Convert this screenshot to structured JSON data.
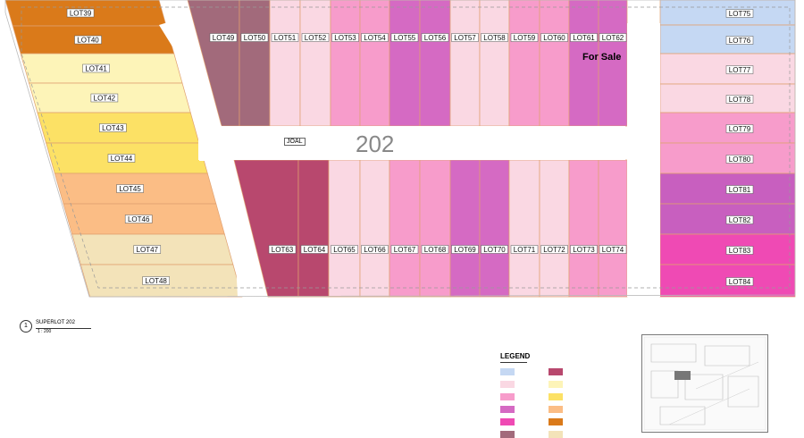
{
  "plan": {
    "superlot_number": "202",
    "road_label": "JOAL",
    "for_sale_label": "For Sale",
    "view_number": "1",
    "view_title": "SUPERLOT 202",
    "view_scale": "1 : 200"
  },
  "lots": [
    {
      "id": "LOT39",
      "color": "#da7a1a"
    },
    {
      "id": "LOT40",
      "color": "#da7a1a"
    },
    {
      "id": "LOT41",
      "color": "#fdf4b8"
    },
    {
      "id": "LOT42",
      "color": "#fdf4b8"
    },
    {
      "id": "LOT43",
      "color": "#fce165"
    },
    {
      "id": "LOT44",
      "color": "#fce165"
    },
    {
      "id": "LOT45",
      "color": "#fbbd85"
    },
    {
      "id": "LOT46",
      "color": "#fbbd85"
    },
    {
      "id": "LOT47",
      "color": "#f3e3b9"
    },
    {
      "id": "LOT48",
      "color": "#f3e3b9"
    },
    {
      "id": "LOT49",
      "color": "#a26a7b"
    },
    {
      "id": "LOT50",
      "color": "#a26a7b"
    },
    {
      "id": "LOT51",
      "color": "#fad8e3"
    },
    {
      "id": "LOT52",
      "color": "#fad8e3"
    },
    {
      "id": "LOT53",
      "color": "#f79ccb"
    },
    {
      "id": "LOT54",
      "color": "#f79ccb"
    },
    {
      "id": "LOT55",
      "color": "#d56ac3"
    },
    {
      "id": "LOT56",
      "color": "#d56ac3"
    },
    {
      "id": "LOT57",
      "color": "#fad8e3"
    },
    {
      "id": "LOT58",
      "color": "#fad8e3"
    },
    {
      "id": "LOT59",
      "color": "#f79ccb"
    },
    {
      "id": "LOT60",
      "color": "#f79ccb"
    },
    {
      "id": "LOT61",
      "color": "#d56ac3"
    },
    {
      "id": "LOT62",
      "color": "#d56ac3"
    },
    {
      "id": "LOT63",
      "color": "#b8486e"
    },
    {
      "id": "LOT64",
      "color": "#b8486e"
    },
    {
      "id": "LOT65",
      "color": "#fad8e3"
    },
    {
      "id": "LOT66",
      "color": "#fad8e3"
    },
    {
      "id": "LOT67",
      "color": "#f79ccb"
    },
    {
      "id": "LOT68",
      "color": "#f79ccb"
    },
    {
      "id": "LOT69",
      "color": "#d56ac3"
    },
    {
      "id": "LOT70",
      "color": "#d56ac3"
    },
    {
      "id": "LOT71",
      "color": "#fad8e3"
    },
    {
      "id": "LOT72",
      "color": "#fad8e3"
    },
    {
      "id": "LOT73",
      "color": "#f79ccb"
    },
    {
      "id": "LOT74",
      "color": "#f79ccb"
    },
    {
      "id": "LOT75",
      "color": "#c5d8f3"
    },
    {
      "id": "LOT76",
      "color": "#c5d8f3"
    },
    {
      "id": "LOT77",
      "color": "#fad8e3"
    },
    {
      "id": "LOT78",
      "color": "#fad8e3"
    },
    {
      "id": "LOT79",
      "color": "#f79ccb"
    },
    {
      "id": "LOT80",
      "color": "#f79ccb"
    },
    {
      "id": "LOT81",
      "color": "#c85fbf"
    },
    {
      "id": "LOT82",
      "color": "#c85fbf"
    },
    {
      "id": "LOT83",
      "color": "#ef4ab4"
    },
    {
      "id": "LOT84",
      "color": "#ef4ab4"
    }
  ],
  "legend": {
    "title": "LEGEND",
    "items": [
      {
        "color": "#c5d8f3"
      },
      {
        "color": "#b8486e"
      },
      {
        "color": "#fad8e3"
      },
      {
        "color": "#fdf4b8"
      },
      {
        "color": "#f79ccb"
      },
      {
        "color": "#fce165"
      },
      {
        "color": "#d56ac3"
      },
      {
        "color": "#fbbd85"
      },
      {
        "color": "#ef4ab4"
      },
      {
        "color": "#da7a1a"
      },
      {
        "color": "#a26a7b"
      },
      {
        "color": "#f3e3b9"
      }
    ]
  }
}
